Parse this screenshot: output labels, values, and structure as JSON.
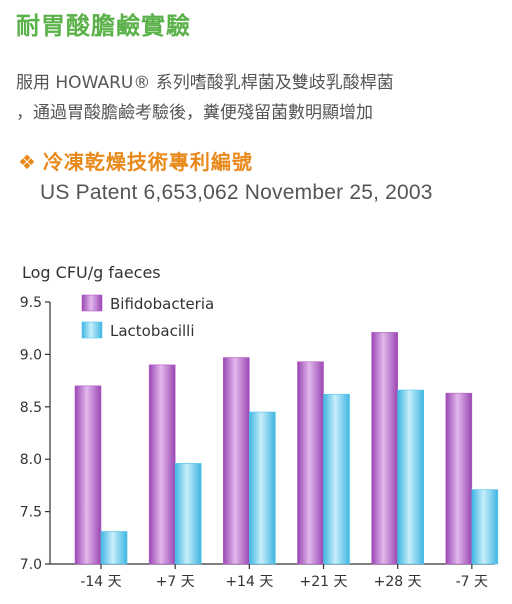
{
  "header": {
    "title": "耐胃酸膽鹼實驗",
    "desc_line1": "服用 HOWARU® 系列嗜酸乳桿菌及雙歧乳酸桿菌",
    "desc_line2": "，通過胃酸膽鹼考驗後，糞便殘留菌數明顯增加"
  },
  "patent": {
    "bullet": "❖",
    "heading": "冷凍乾燥技術專利編號",
    "text": "US Patent 6,653,062 November 25, 2003"
  },
  "colors": {
    "title": "#5cb24a",
    "patent_heading": "#e8891a",
    "bifido": "#b15cc4",
    "lacto": "#4fc3ea"
  },
  "chart_data": {
    "type": "bar",
    "title": "",
    "ylabel": "Log CFU/g faeces",
    "xlabel": "",
    "ylim": [
      7.0,
      9.5
    ],
    "yticks": [
      "7.0",
      "7.5",
      "8.0",
      "8.5",
      "9.0",
      "9.5"
    ],
    "categories": [
      "-14 天",
      "+7 天",
      "+14 天",
      "+21 天",
      "+28 天",
      "-7 天"
    ],
    "series": [
      {
        "name": "Bifidobacteria",
        "values": [
          8.7,
          8.9,
          8.97,
          8.93,
          9.21,
          8.63
        ]
      },
      {
        "name": "Lactobacilli",
        "values": [
          7.31,
          7.96,
          8.45,
          8.62,
          8.66,
          7.71
        ]
      }
    ],
    "legend_position": "top-left",
    "grid": false
  }
}
